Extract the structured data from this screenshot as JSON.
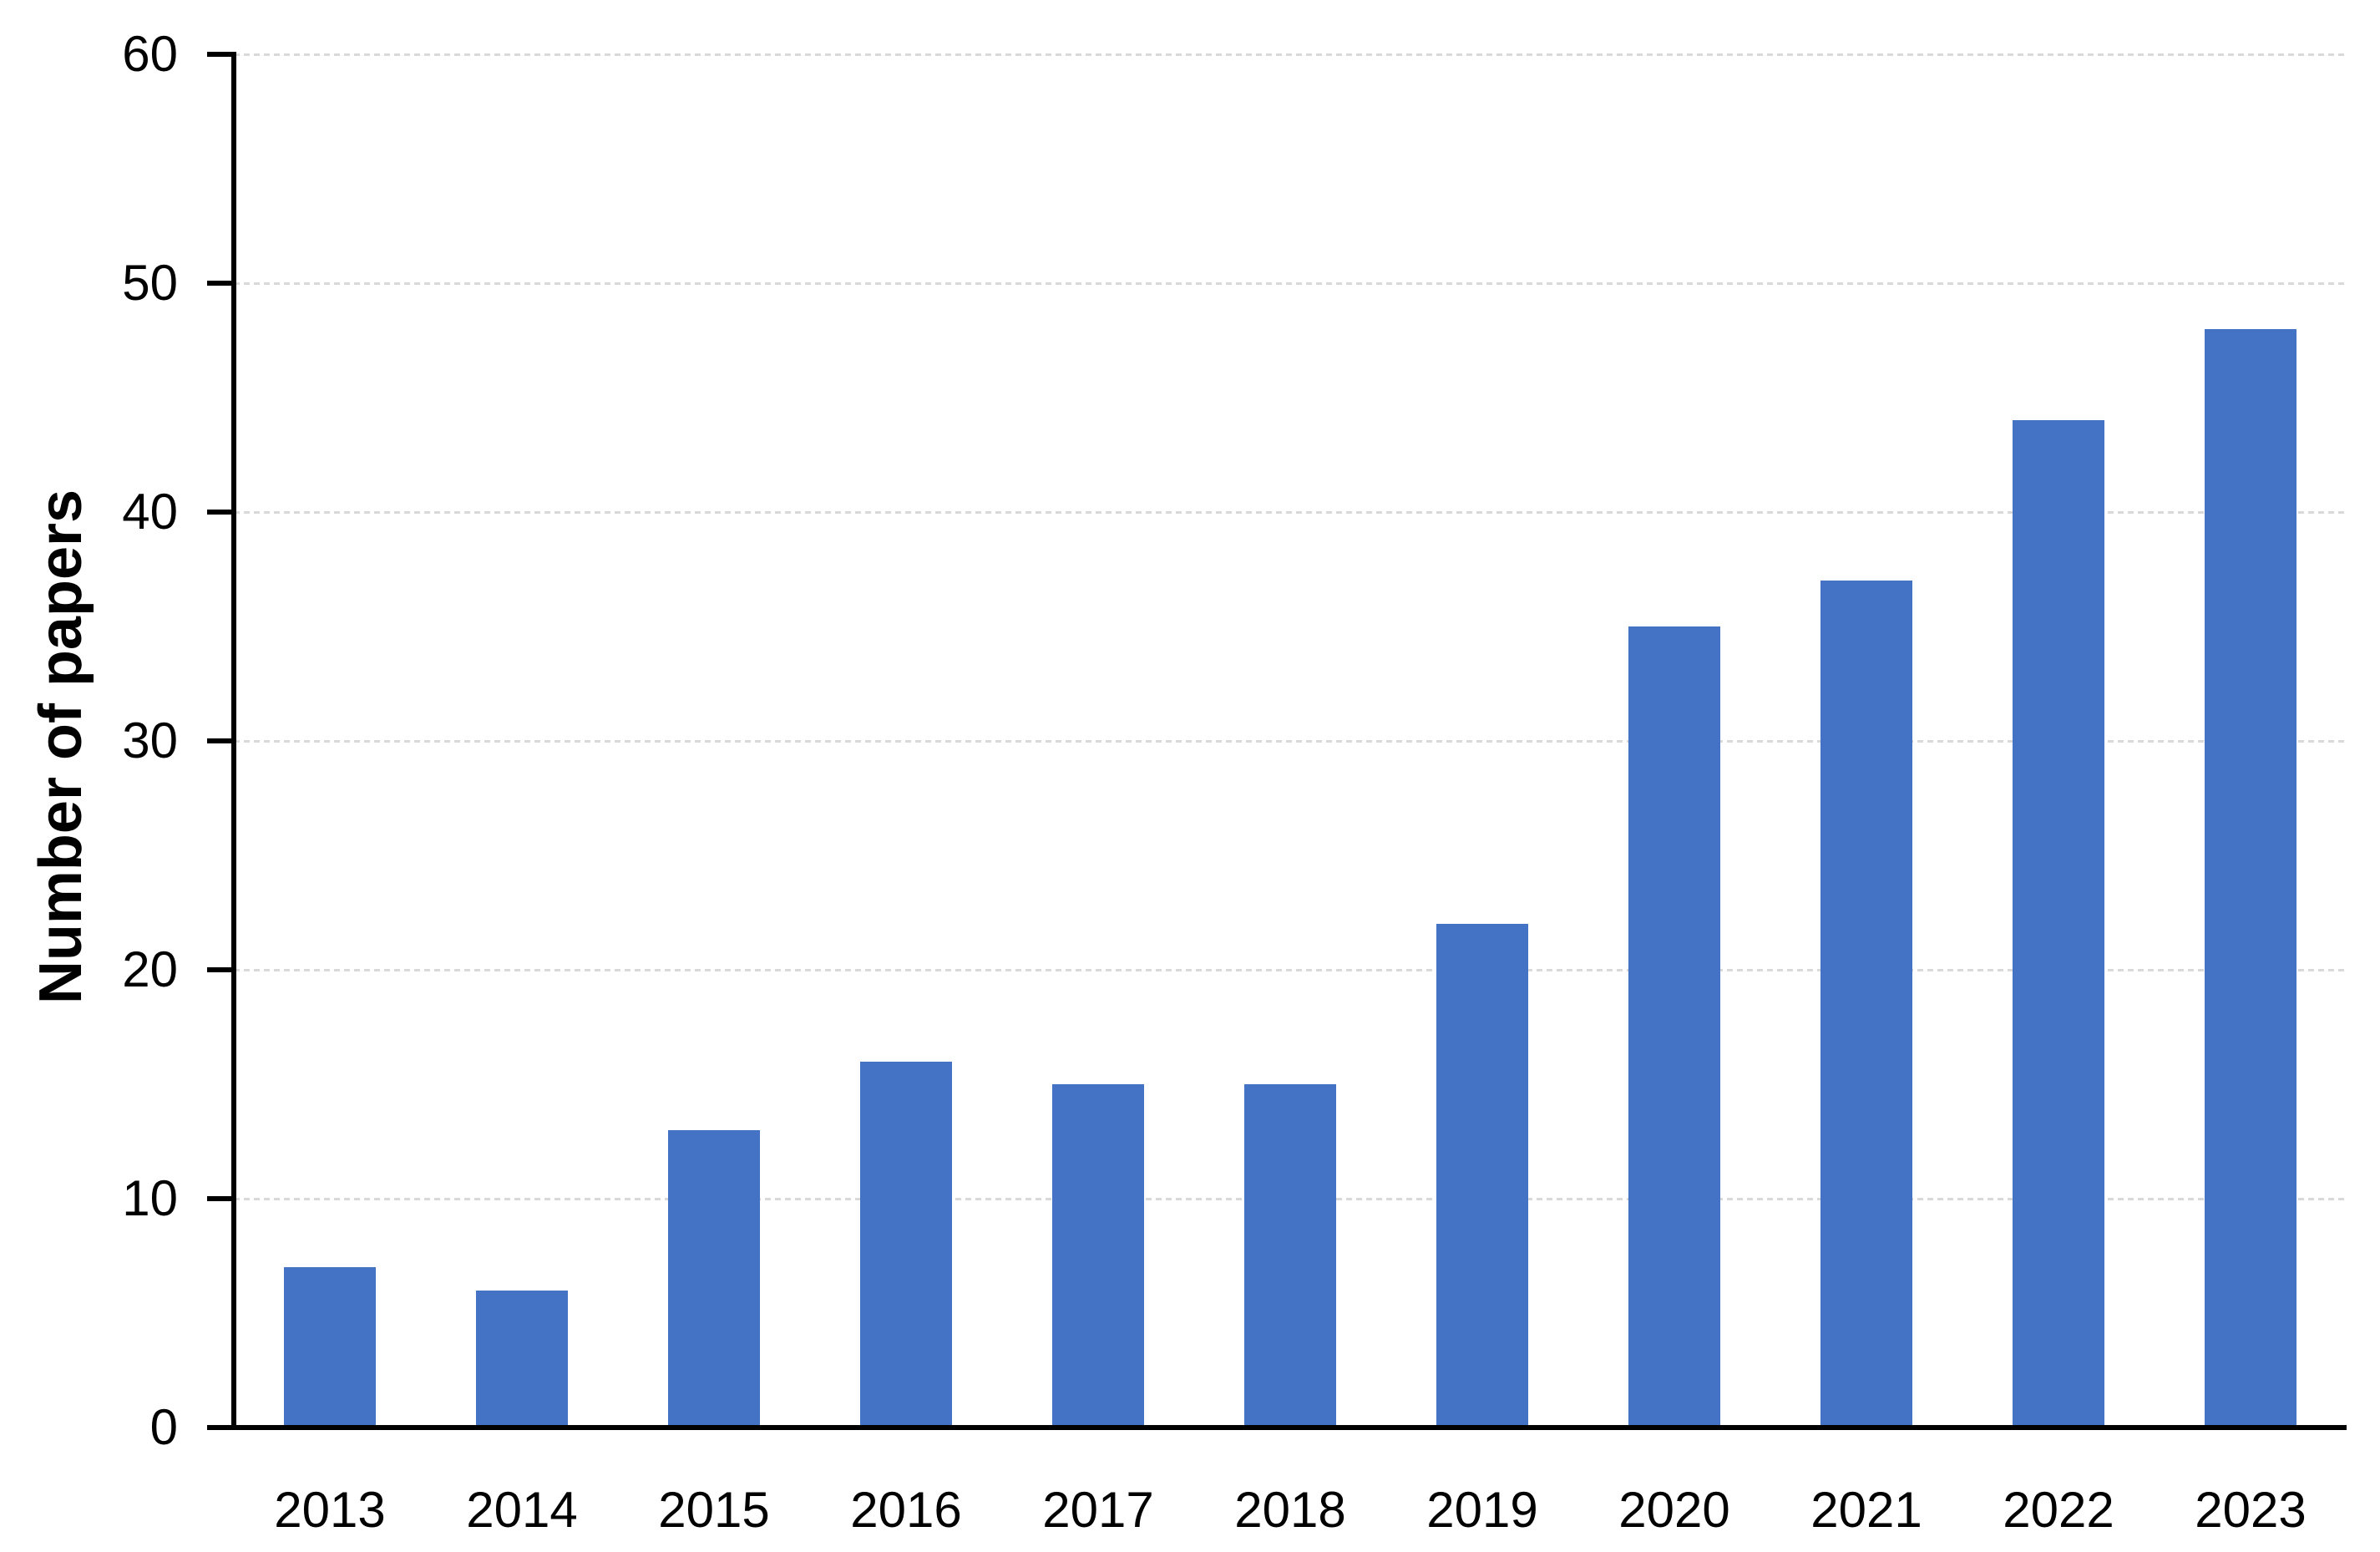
{
  "chart_data": {
    "type": "bar",
    "categories": [
      "2013",
      "2014",
      "2015",
      "2016",
      "2017",
      "2018",
      "2019",
      "2020",
      "2021",
      "2022",
      "2023"
    ],
    "values": [
      7,
      6,
      13,
      16,
      15,
      15,
      22,
      35,
      37,
      44,
      48
    ],
    "ylabel": "Number of papers",
    "xlabel": "",
    "ylim": [
      0,
      60
    ],
    "yticks": [
      0,
      10,
      20,
      30,
      40,
      50,
      60
    ],
    "grid": "horizontal-dashed",
    "legend": "none",
    "colors": {
      "bar": "#4472C4",
      "gridline": "#D9D9D9",
      "axis": "#000000",
      "text": "#000000",
      "background": "#FFFFFF"
    }
  }
}
